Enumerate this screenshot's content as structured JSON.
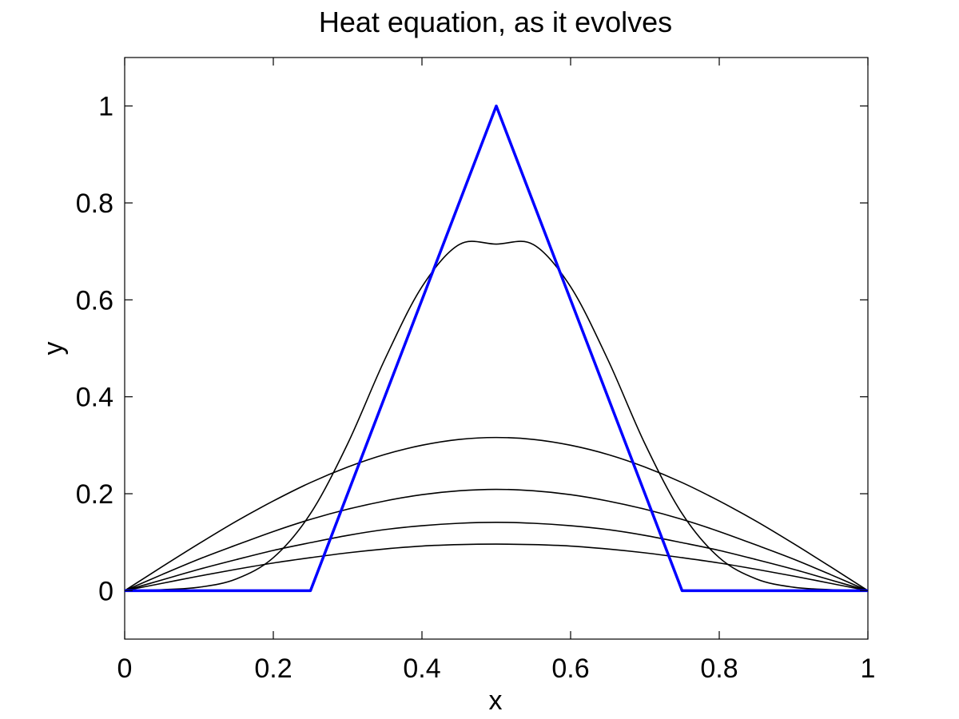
{
  "chart_data": {
    "type": "line",
    "title": "Heat equation, as it evolves",
    "xlabel": "x",
    "ylabel": "y",
    "xlim": [
      0,
      1
    ],
    "ylim": [
      -0.1,
      1.1
    ],
    "x_ticks": [
      0,
      0.2,
      0.4,
      0.6,
      0.8,
      1
    ],
    "y_ticks": [
      0,
      0.2,
      0.4,
      0.6,
      0.8,
      1
    ],
    "x_tick_labels": [
      "0",
      "0.2",
      "0.4",
      "0.6",
      "0.8",
      "1"
    ],
    "y_tick_labels": [
      "0",
      "0.2",
      "0.4",
      "0.6",
      "0.8",
      "1"
    ],
    "grid": false,
    "legend": "none",
    "x": [
      0,
      0.05,
      0.1,
      0.15,
      0.2,
      0.25,
      0.3,
      0.35,
      0.4,
      0.45,
      0.5,
      0.55,
      0.6,
      0.65,
      0.7,
      0.75,
      0.8,
      0.85,
      0.9,
      0.95,
      1
    ],
    "series": [
      {
        "color": "#0000ff",
        "values": [
          0,
          0,
          0,
          0,
          0,
          0,
          0.2,
          0.4,
          0.6,
          0.8,
          1,
          0.8,
          0.6,
          0.4,
          0.2,
          0,
          0,
          0,
          0,
          0,
          0
        ]
      },
      {
        "color": "#000000",
        "values": [
          0,
          0.002,
          0.007,
          0.024,
          0.068,
          0.159,
          0.303,
          0.477,
          0.627,
          0.714,
          0.715,
          0.714,
          0.627,
          0.477,
          0.303,
          0.159,
          0.068,
          0.024,
          0.007,
          0.002,
          0
        ]
      },
      {
        "color": "#000000",
        "values": [
          0,
          0.049,
          0.097,
          0.143,
          0.185,
          0.223,
          0.255,
          0.281,
          0.3,
          0.312,
          0.316,
          0.312,
          0.3,
          0.281,
          0.255,
          0.223,
          0.185,
          0.143,
          0.097,
          0.049,
          0
        ]
      },
      {
        "color": "#000000",
        "values": [
          0,
          0.033,
          0.065,
          0.094,
          0.122,
          0.147,
          0.168,
          0.185,
          0.198,
          0.206,
          0.209,
          0.206,
          0.198,
          0.185,
          0.168,
          0.147,
          0.122,
          0.094,
          0.065,
          0.033,
          0
        ]
      },
      {
        "color": "#000000",
        "values": [
          0,
          0.022,
          0.044,
          0.064,
          0.083,
          0.099,
          0.114,
          0.126,
          0.134,
          0.139,
          0.141,
          0.139,
          0.134,
          0.126,
          0.114,
          0.099,
          0.083,
          0.064,
          0.044,
          0.022,
          0
        ]
      },
      {
        "color": "#000000",
        "values": [
          0,
          0.015,
          0.03,
          0.044,
          0.057,
          0.068,
          0.078,
          0.086,
          0.092,
          0.095,
          0.096,
          0.095,
          0.092,
          0.086,
          0.078,
          0.068,
          0.057,
          0.044,
          0.03,
          0.015,
          0
        ]
      }
    ]
  }
}
